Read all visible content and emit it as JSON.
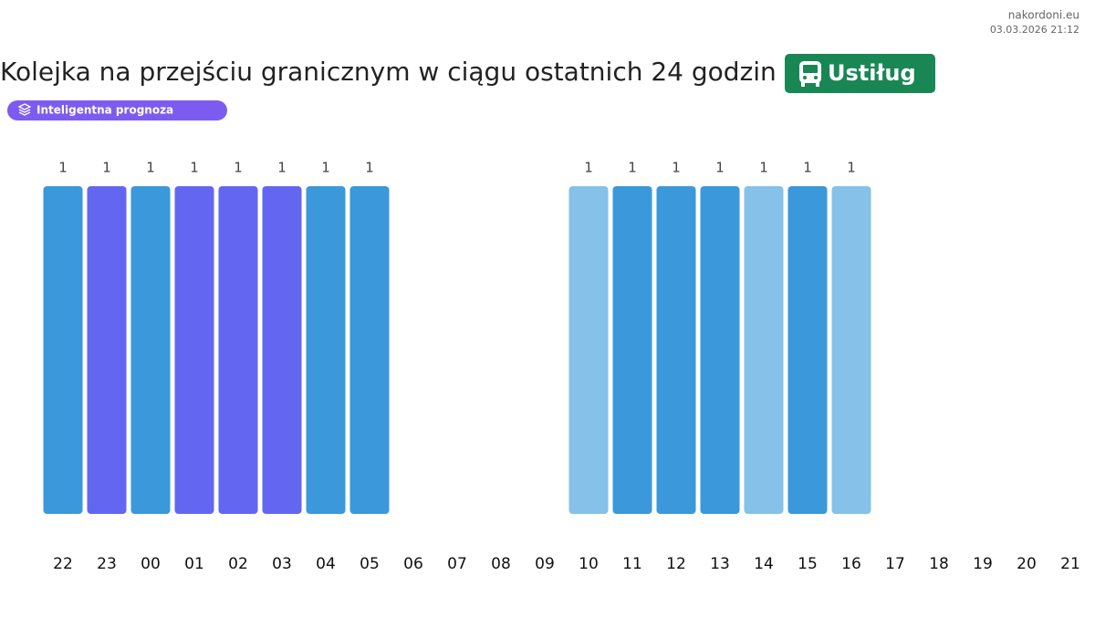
{
  "site": "nakordoni.eu",
  "timestamp": "03.03.2026 21:12",
  "chart_data": {
    "type": "bar",
    "title": "Kolejka na przejściu granicznym w ciągu ostatnich 24 godzin",
    "place": "Ustiług",
    "badge": "Inteligentna prognoza",
    "categories": [
      "22",
      "23",
      "00",
      "01",
      "02",
      "03",
      "04",
      "05",
      "06",
      "07",
      "08",
      "09",
      "10",
      "11",
      "12",
      "13",
      "14",
      "15",
      "16",
      "17",
      "18",
      "19",
      "20",
      "21"
    ],
    "values": [
      1,
      1,
      1,
      1,
      1,
      1,
      1,
      1,
      null,
      null,
      null,
      null,
      1,
      1,
      1,
      1,
      1,
      1,
      1,
      null,
      null,
      null,
      null,
      null
    ],
    "colors": [
      "#3a98db",
      "#6366f1",
      "#3a98db",
      "#6366f1",
      "#6366f1",
      "#6366f1",
      "#3a98db",
      "#3a98db",
      null,
      null,
      null,
      null,
      "#85c1e9",
      "#3a98db",
      "#3a98db",
      "#3a98db",
      "#85c1e9",
      "#3a98db",
      "#85c1e9",
      null,
      null,
      null,
      null,
      null
    ],
    "ylim": [
      0,
      1
    ]
  }
}
